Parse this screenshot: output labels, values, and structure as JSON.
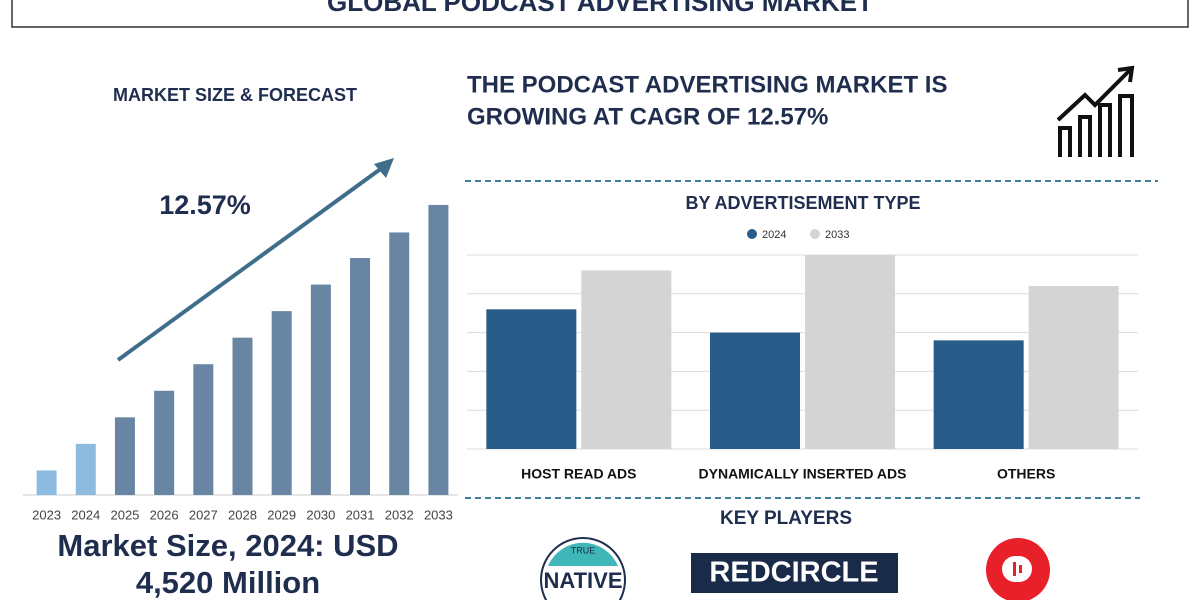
{
  "header": {
    "title": "GLOBAL PODCAST ADVERTISING MARKET"
  },
  "headline": [
    "THE PODCAST ADVERTISING MARKET IS",
    "GROWING AT CAGR OF 12.57%"
  ],
  "market_size": [
    "Market Size, 2024: USD",
    "4,520 Million"
  ],
  "chart_data": [
    {
      "type": "bar",
      "title": "MARKET SIZE & FORECAST",
      "categories": [
        "2023",
        "2024",
        "2025",
        "2026",
        "2027",
        "2028",
        "2029",
        "2030",
        "2031",
        "2032",
        "2033"
      ],
      "values": [
        25,
        52,
        79,
        106,
        133,
        160,
        187,
        214,
        241,
        267,
        295
      ],
      "colors": [
        "#8dbbe0",
        "#8dbbe0",
        "#6886a4",
        "#6886a4",
        "#6886a4",
        "#6886a4",
        "#6886a4",
        "#6886a4",
        "#6886a4",
        "#6886a4",
        "#6886a4"
      ],
      "annotation": "12.57%",
      "ylim": [
        0,
        300
      ]
    },
    {
      "type": "bar",
      "title": "BY ADVERTISEMENT TYPE",
      "categories": [
        "HOST READ ADS",
        "DYNAMICALLY INSERTED ADS",
        "OTHERS"
      ],
      "series": [
        {
          "name": "2024",
          "color": "#285d8a",
          "values": [
            3.6,
            3.0,
            2.8
          ]
        },
        {
          "name": "2033",
          "color": "#d4d4d4",
          "values": [
            4.6,
            5.0,
            4.2
          ]
        }
      ],
      "ylim": [
        0,
        5
      ],
      "yticks": [
        0,
        1,
        2,
        3,
        4,
        5
      ],
      "grid": true
    }
  ],
  "key_players": {
    "title": "KEY PLAYERS",
    "logos": [
      {
        "lines": [
          "TRUE",
          "NATIVE"
        ]
      },
      {
        "lines": [
          "REDCIRCLE"
        ]
      }
    ]
  }
}
